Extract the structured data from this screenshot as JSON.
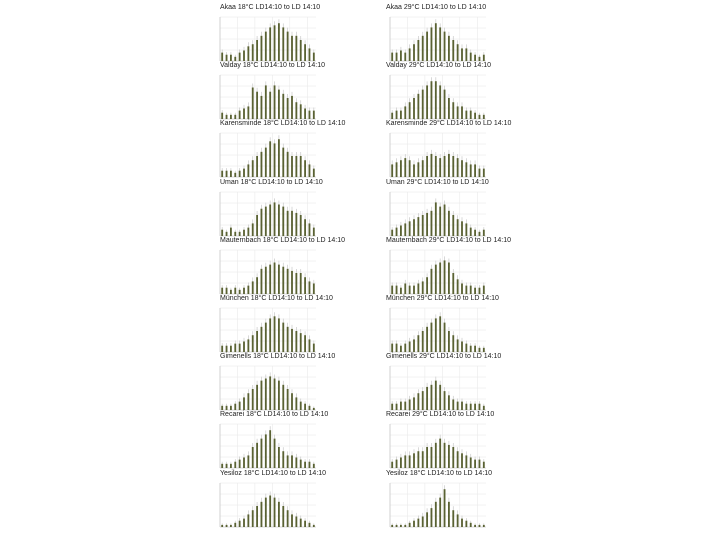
{
  "colors": {
    "bar": "#5a6233",
    "error": "#c8c8c8",
    "grid": "#e6e6e6",
    "axis": "#bdbdbd"
  },
  "chart_data": [
    {
      "type": "bar",
      "title": "Akaa 18°C LD14:10 to LD 14:10",
      "values": [
        2,
        1.5,
        1.5,
        1,
        2,
        2.5,
        3.5,
        4,
        5,
        6,
        7,
        8,
        8.5,
        9,
        8,
        7,
        6,
        6,
        5,
        4,
        3,
        2
      ]
    },
    {
      "type": "bar",
      "title": "Akaa 29°C LD14:10 to LD 14:10",
      "values": [
        2,
        2,
        2.5,
        2,
        3,
        4,
        5,
        6,
        7,
        8,
        9,
        8,
        7,
        6,
        5,
        4,
        3,
        3,
        2,
        1.5,
        1,
        1.5
      ]
    },
    {
      "type": "bar",
      "title": "Valday 18°C LD14:10 to LD 14:10",
      "values": [
        1.5,
        1,
        1,
        1,
        2,
        2.5,
        3,
        7.5,
        6.5,
        5.5,
        8,
        6.5,
        8,
        7,
        6,
        5,
        5.5,
        4,
        3.5,
        2.5,
        2,
        2
      ]
    },
    {
      "type": "bar",
      "title": "Valday 29°C LD14:10 to LD 14:10",
      "values": [
        1.5,
        2,
        2,
        3,
        4,
        5,
        6,
        7,
        8,
        9,
        9,
        8,
        7,
        5,
        4,
        3,
        3,
        2,
        2,
        1.5,
        1,
        1
      ]
    },
    {
      "type": "bar",
      "title": "Karensminde 18°C LD14:10 to LD 14:10",
      "values": [
        1.5,
        1.5,
        1.5,
        1,
        1.5,
        2,
        3,
        4,
        5,
        6,
        7,
        8.5,
        8,
        9,
        7,
        6,
        5,
        5,
        5,
        4,
        3,
        2
      ]
    },
    {
      "type": "bar",
      "title": "Karensminde 29°C LD14:10 to LD 14:10",
      "values": [
        3,
        3.5,
        4,
        4.5,
        4,
        3,
        3.5,
        4,
        5,
        5.5,
        5,
        4.5,
        5,
        5.5,
        5,
        4.5,
        4,
        3.5,
        3,
        3,
        2,
        2
      ]
    },
    {
      "type": "bar",
      "title": "Uman 18°C LD14:10 to LD 14:10",
      "values": [
        1.5,
        1,
        2,
        1,
        1,
        1.5,
        2,
        3,
        5,
        6.5,
        7,
        7.5,
        8,
        7.5,
        7,
        6,
        6,
        5.5,
        5,
        4,
        3,
        2
      ]
    },
    {
      "type": "bar",
      "title": "Uman 29°C LD14:10 to LD 14:10",
      "values": [
        1.5,
        2,
        2.5,
        3,
        3.5,
        4,
        4.5,
        5,
        5.5,
        6,
        8,
        7,
        7.5,
        6,
        5,
        4,
        3.5,
        3,
        2,
        1.5,
        1,
        1.5
      ]
    },
    {
      "type": "bar",
      "title": "Mauternbach 18°C LD14:10 to LD 14:10",
      "values": [
        1.5,
        1.5,
        1,
        1.5,
        1,
        1.5,
        2,
        3,
        4,
        6,
        6.5,
        7,
        7.5,
        7,
        6.5,
        6,
        5.5,
        5,
        5,
        4,
        3,
        2.5
      ]
    },
    {
      "type": "bar",
      "title": "Mauternbach 29°C LD14:10 to LD 14:10",
      "values": [
        2,
        2,
        1.5,
        2.5,
        2,
        2,
        2.5,
        3,
        4,
        6,
        7,
        7.5,
        8,
        7.5,
        5,
        3.5,
        2.5,
        2,
        2,
        1.5,
        1.5,
        2
      ]
    },
    {
      "type": "bar",
      "title": "München 18°C LD14:10 to LD 14:10",
      "values": [
        1.5,
        1.5,
        1.5,
        2,
        2,
        2.5,
        3,
        4,
        5,
        6,
        7,
        8,
        8.5,
        8,
        7,
        6,
        5.5,
        5,
        4.5,
        4,
        3,
        2
      ]
    },
    {
      "type": "bar",
      "title": "München 29°C LD14:10 to LD 14:10",
      "values": [
        2,
        2,
        1.5,
        2,
        2.5,
        3,
        4,
        5,
        6,
        7,
        8,
        8.5,
        7,
        5,
        4,
        3,
        2.5,
        2,
        1.5,
        1.5,
        1,
        1
      ]
    },
    {
      "type": "bar",
      "title": "Gimenells 18°C LD14:10 to LD 14:10",
      "values": [
        1,
        1,
        1,
        1.5,
        2,
        3,
        4,
        5,
        6,
        7,
        7.5,
        8,
        7.5,
        7,
        6,
        5,
        4,
        3,
        2,
        1.5,
        1,
        0.5
      ]
    },
    {
      "type": "bar",
      "title": "Gimenells 29°C LD14:10 to LD 14:10",
      "values": [
        1.5,
        1.5,
        2,
        2,
        2.5,
        3,
        4,
        4.5,
        5.5,
        6,
        7,
        6,
        4.5,
        3.5,
        2.5,
        2,
        2,
        1.5,
        1.5,
        1.5,
        1.5,
        1
      ]
    },
    {
      "type": "bar",
      "title": "Recarei 18°C LD14:10 to LD 14:10",
      "values": [
        1,
        1,
        1,
        1.5,
        2,
        2.5,
        3,
        5,
        6,
        7,
        8,
        9,
        7,
        5,
        4,
        3,
        3,
        2.5,
        2,
        1.5,
        1.5,
        1
      ]
    },
    {
      "type": "bar",
      "title": "Recarei 29°C LD14:10 to LD 14:10",
      "values": [
        1.5,
        2,
        2.5,
        3,
        3,
        3.5,
        4,
        4,
        5,
        5,
        6,
        7,
        6,
        5.5,
        5,
        4,
        3.5,
        3,
        2.5,
        2,
        2,
        1.5
      ]
    },
    {
      "type": "bar",
      "title": "Yesiloz 18°C LD14:10 to LD 14:10",
      "values": [
        0.5,
        0.5,
        0.5,
        1,
        1.5,
        2,
        3,
        4,
        5,
        6,
        7,
        7.5,
        7,
        6,
        5,
        4,
        3,
        2.5,
        2,
        1.5,
        1,
        0.5
      ]
    },
    {
      "type": "bar",
      "title": "Yesiloz 18°C LD14:10 to LD 14:10",
      "values": [
        0.5,
        0.5,
        0.5,
        0.5,
        1,
        1.5,
        2,
        2.5,
        3.5,
        4.5,
        6,
        7,
        9,
        6,
        4,
        3,
        2,
        1.5,
        1,
        0.5,
        0.5,
        0.5
      ]
    }
  ]
}
